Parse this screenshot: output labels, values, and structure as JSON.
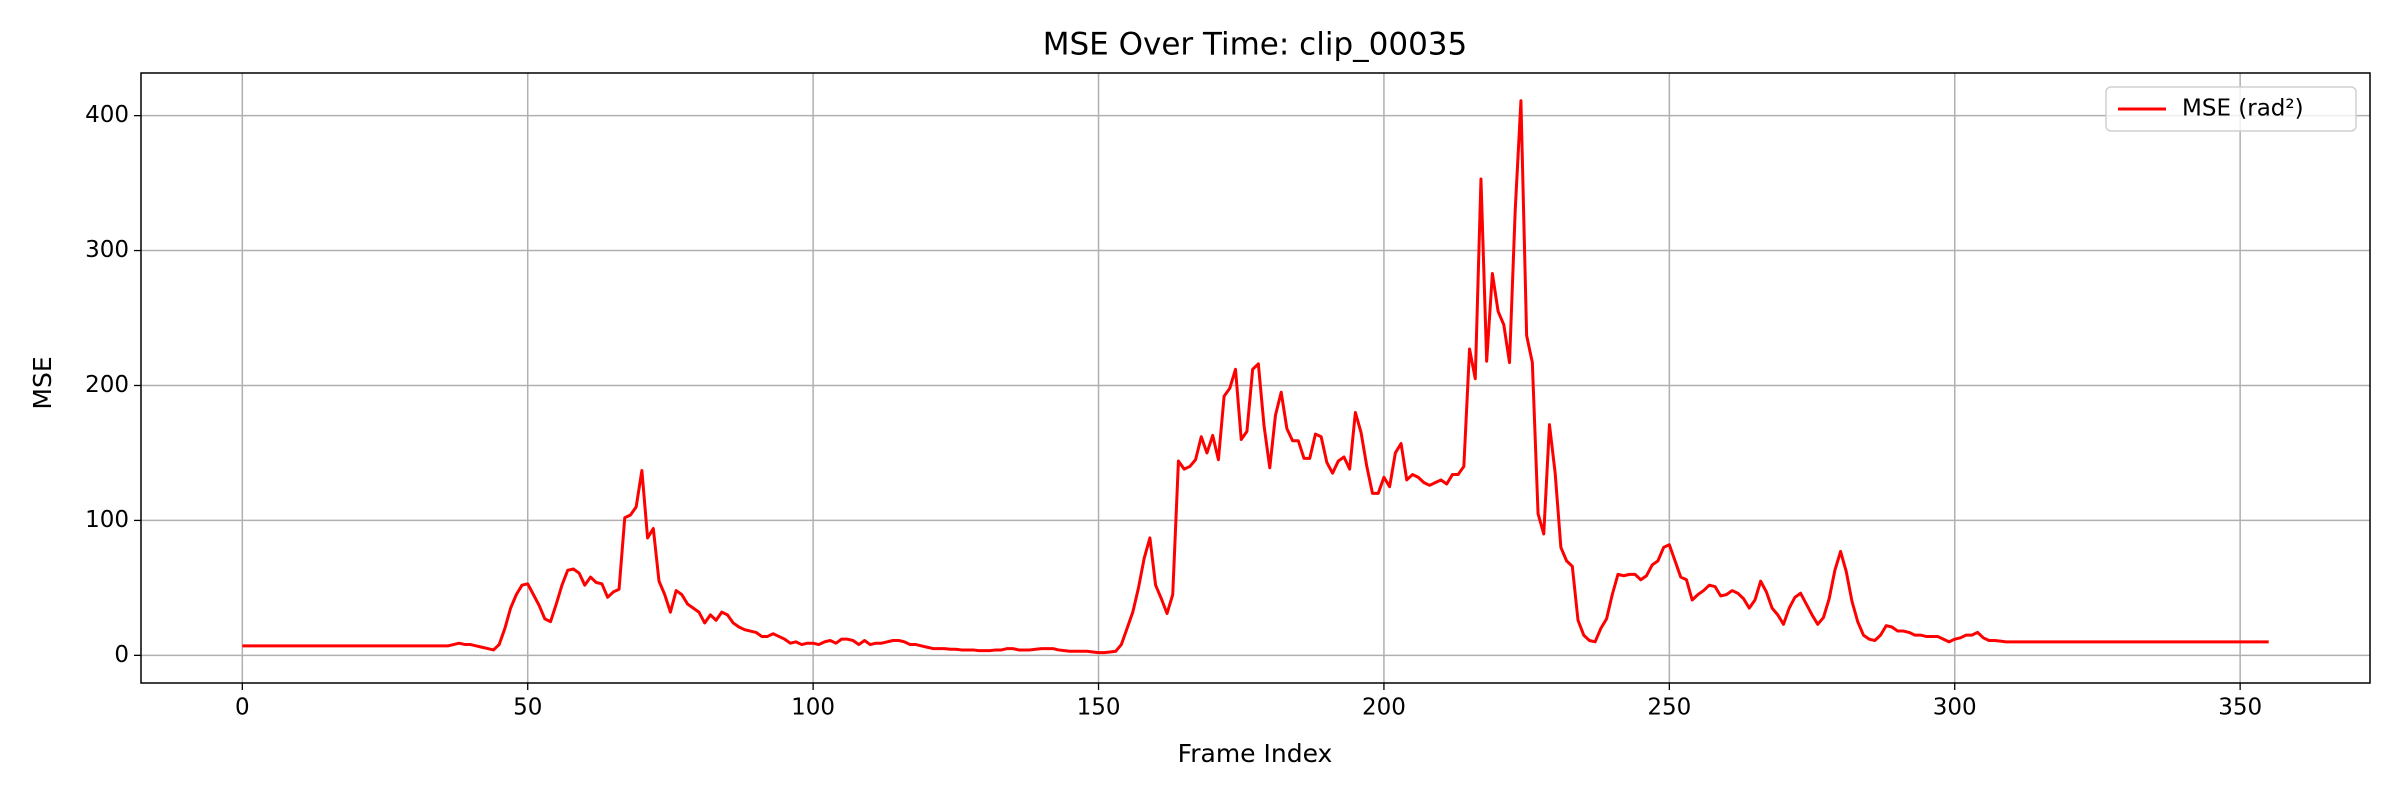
{
  "chart_data": {
    "type": "line",
    "title": "MSE Over Time: clip_00035",
    "xlabel": "Frame Index",
    "ylabel": "MSE",
    "x": [
      0,
      1,
      2,
      3,
      4,
      5,
      6,
      7,
      8,
      9,
      10,
      11,
      12,
      13,
      14,
      15,
      16,
      17,
      18,
      19,
      20,
      21,
      22,
      23,
      24,
      25,
      26,
      27,
      28,
      29,
      30,
      31,
      32,
      33,
      34,
      35,
      36,
      37,
      38,
      39,
      40,
      41,
      42,
      43,
      44,
      45,
      46,
      47,
      48,
      49,
      50,
      51,
      52,
      53,
      54,
      55,
      56,
      57,
      58,
      59,
      60,
      61,
      62,
      63,
      64,
      65,
      66,
      67,
      68,
      69,
      70,
      71,
      72,
      73,
      74,
      75,
      76,
      77,
      78,
      79,
      80,
      81,
      82,
      83,
      84,
      85,
      86,
      87,
      88,
      89,
      90,
      91,
      92,
      93,
      94,
      95,
      96,
      97,
      98,
      99,
      100,
      101,
      102,
      103,
      104,
      105,
      106,
      107,
      108,
      109,
      110,
      111,
      112,
      113,
      114,
      115,
      116,
      117,
      118,
      119,
      120,
      121,
      122,
      123,
      124,
      125,
      126,
      127,
      128,
      129,
      130,
      131,
      132,
      133,
      134,
      135,
      136,
      137,
      138,
      139,
      140,
      141,
      142,
      143,
      144,
      145,
      146,
      147,
      148,
      149,
      150,
      151,
      152,
      153,
      154,
      155,
      156,
      157,
      158,
      159,
      160,
      161,
      162,
      163,
      164,
      165,
      166,
      167,
      168,
      169,
      170,
      171,
      172,
      173,
      174,
      175,
      176,
      177,
      178,
      179,
      180,
      181,
      182,
      183,
      184,
      185,
      186,
      187,
      188,
      189,
      190,
      191,
      192,
      193,
      194,
      195,
      196,
      197,
      198,
      199,
      200,
      201,
      202,
      203,
      204,
      205,
      206,
      207,
      208,
      209,
      210,
      211,
      212,
      213,
      214,
      215,
      216,
      217,
      218,
      219,
      220,
      221,
      222,
      223,
      224,
      225,
      226,
      227,
      228,
      229,
      230,
      231,
      232,
      233,
      234,
      235,
      236,
      237,
      238,
      239,
      240,
      241,
      242,
      243,
      244,
      245,
      246,
      247,
      248,
      249,
      250,
      251,
      252,
      253,
      254,
      255,
      256,
      257,
      258,
      259,
      260,
      261,
      262,
      263,
      264,
      265,
      266,
      267,
      268,
      269,
      270,
      271,
      272,
      273,
      274,
      275,
      276,
      277,
      278,
      279,
      280,
      281,
      282,
      283,
      284,
      285,
      286,
      287,
      288,
      289,
      290,
      291,
      292,
      293,
      294,
      295,
      296,
      297,
      298,
      299,
      300,
      301,
      302,
      303,
      304,
      305,
      306,
      307,
      308,
      309,
      310,
      311,
      312,
      313,
      314,
      315,
      316,
      317,
      318,
      319,
      320,
      321,
      322,
      323,
      324,
      325,
      326,
      327,
      328,
      329,
      330,
      331,
      332,
      333,
      334,
      335,
      336,
      337,
      338,
      339,
      340,
      341,
      342,
      343,
      344,
      345,
      346,
      347,
      348,
      349,
      350,
      351,
      352,
      353,
      354,
      355
    ],
    "series": [
      {
        "name": "MSE (rad²)",
        "color": "#ff0000",
        "values": [
          7,
          7,
          7,
          7,
          7,
          7,
          7,
          7,
          7,
          7,
          7,
          7,
          7,
          7,
          7,
          7,
          7,
          7,
          7,
          7,
          7,
          7,
          7,
          7,
          7,
          7,
          7,
          7,
          7,
          7,
          7,
          7,
          7,
          7,
          7,
          7,
          7,
          8,
          9,
          8,
          8,
          7,
          6,
          5,
          4,
          8,
          20,
          35,
          45,
          52,
          53,
          45,
          37,
          27,
          25,
          38,
          52,
          63,
          64,
          61,
          52,
          58,
          54,
          53,
          43,
          47,
          49,
          102,
          104,
          110,
          137,
          87,
          94,
          55,
          45,
          32,
          48,
          45,
          38,
          35,
          32,
          24,
          30,
          26,
          32,
          30,
          24,
          21,
          19,
          18,
          17,
          14,
          14,
          16,
          14,
          12,
          9,
          10,
          8,
          9,
          9,
          8,
          10,
          11,
          9,
          12,
          12,
          11,
          8,
          11,
          8,
          9,
          9,
          10,
          11,
          11,
          10,
          8,
          8,
          7,
          6,
          5,
          5,
          5,
          4.5,
          4.5,
          4,
          4,
          4,
          3.5,
          3.5,
          3.5,
          4,
          4,
          5,
          5,
          4,
          4,
          4,
          4.5,
          5,
          5,
          5,
          4,
          3.5,
          3,
          3,
          3,
          3,
          2.5,
          2,
          2,
          2.5,
          3,
          8,
          20,
          32,
          50,
          72,
          87,
          52,
          42,
          31,
          45,
          144,
          138,
          140,
          145,
          162,
          150,
          163,
          145,
          192,
          198,
          212,
          160,
          166,
          212,
          216,
          170,
          139,
          178,
          195,
          168,
          159,
          159,
          146,
          146,
          164,
          162,
          143,
          135,
          144,
          147,
          138,
          180,
          165,
          140,
          120,
          120,
          132,
          125,
          150,
          157,
          130,
          134,
          132,
          128,
          126,
          128,
          130,
          127,
          134,
          134,
          140,
          227,
          205,
          353,
          218,
          283,
          255,
          245,
          217,
          330,
          411,
          237,
          217,
          105,
          90,
          171,
          135,
          80,
          70,
          66,
          26,
          15,
          11,
          10,
          20,
          27,
          45,
          60,
          59,
          60,
          60,
          56,
          59,
          67,
          70,
          80,
          82,
          70,
          58,
          56,
          41,
          45,
          48,
          52,
          51,
          44,
          45,
          48,
          46,
          42,
          35,
          41,
          55,
          47,
          35,
          30,
          23,
          35,
          43,
          46,
          38,
          30,
          23,
          28,
          42,
          63,
          77,
          62,
          40,
          25,
          15,
          12,
          11,
          15,
          22,
          21,
          18,
          18,
          17,
          15,
          15,
          14,
          14,
          14,
          12,
          10,
          12,
          13,
          15,
          15,
          17,
          13,
          11,
          11,
          10.5,
          10,
          10,
          10,
          10,
          10,
          10,
          10,
          10,
          10,
          10,
          10,
          10,
          10,
          10,
          10,
          10,
          10,
          10,
          10,
          10,
          10,
          10,
          10,
          10,
          10,
          10,
          10,
          10,
          10,
          10,
          10,
          10,
          10,
          10,
          10,
          10,
          10,
          10,
          10,
          10,
          10,
          10,
          10,
          10,
          10,
          10,
          10
        ]
      }
    ],
    "xlim": [
      -17.75,
      372.75
    ],
    "xticks": [
      0,
      50,
      100,
      150,
      200,
      250,
      300,
      350
    ],
    "ylim": [
      -20.5,
      431.6
    ],
    "yticks": [
      0,
      100,
      200,
      300,
      400
    ],
    "grid": true,
    "legend": "upper right"
  }
}
